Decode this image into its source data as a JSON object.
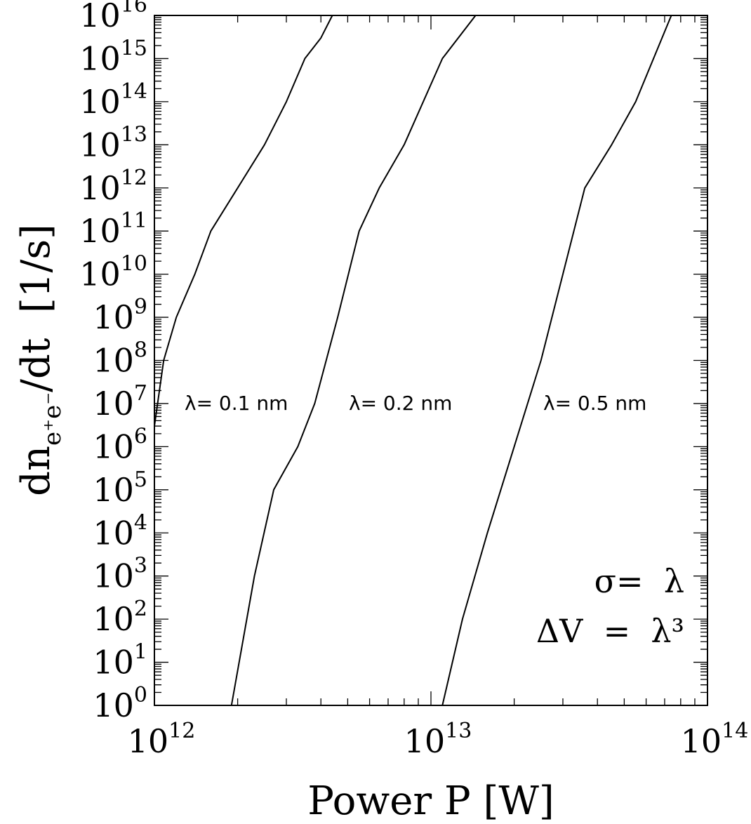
{
  "chart_data": {
    "type": "line",
    "x_scale": "log",
    "y_scale": "log",
    "xlim": [
      1000000000000.0,
      100000000000000.0
    ],
    "ylim": [
      1,
      1e+16
    ],
    "x_ticks": [
      {
        "value": 1000000000000.0,
        "base": "10",
        "exp": "12"
      },
      {
        "value": 10000000000000.0,
        "base": "10",
        "exp": "13"
      },
      {
        "value": 100000000000000.0,
        "base": "10",
        "exp": "14"
      }
    ],
    "y_ticks": [
      {
        "value": 1.0,
        "base": "10",
        "exp": "0"
      },
      {
        "value": 10.0,
        "base": "10",
        "exp": "1"
      },
      {
        "value": 100.0,
        "base": "10",
        "exp": "2"
      },
      {
        "value": 1000.0,
        "base": "10",
        "exp": "3"
      },
      {
        "value": 10000.0,
        "base": "10",
        "exp": "4"
      },
      {
        "value": 100000.0,
        "base": "10",
        "exp": "5"
      },
      {
        "value": 1000000.0,
        "base": "10",
        "exp": "6"
      },
      {
        "value": 10000000.0,
        "base": "10",
        "exp": "7"
      },
      {
        "value": 100000000.0,
        "base": "10",
        "exp": "8"
      },
      {
        "value": 1000000000.0,
        "base": "10",
        "exp": "9"
      },
      {
        "value": 10000000000.0,
        "base": "10",
        "exp": "10"
      },
      {
        "value": 100000000000.0,
        "base": "10",
        "exp": "11"
      },
      {
        "value": 1000000000000.0,
        "base": "10",
        "exp": "12"
      },
      {
        "value": 10000000000000.0,
        "base": "10",
        "exp": "13"
      },
      {
        "value": 100000000000000.0,
        "base": "10",
        "exp": "14"
      },
      {
        "value": 1000000000000000.0,
        "base": "10",
        "exp": "15"
      },
      {
        "value": 1e+16,
        "base": "10",
        "exp": "16"
      }
    ],
    "xlabel": "Power P [W]",
    "ylabel": {
      "prefix": "dn",
      "sub": "e⁺e⁻",
      "suffix": "/dt  [1/s]"
    },
    "annotations": [
      "σ=  λ",
      "ΔV  =  λ³"
    ],
    "grid": false,
    "series": [
      {
        "name": "λ= 0.1 nm",
        "x": [
          1000000000000.0,
          1080000000000.0,
          1200000000000.0,
          1400000000000.0,
          1600000000000.0,
          2000000000000.0,
          2500000000000.0,
          3000000000000.0,
          3500000000000.0,
          4000000000000.0,
          4400000000000.0
        ],
        "y": [
          3000000.0,
          100000000.0,
          1000000000.0,
          10000000000.0,
          100000000000.0,
          1000000000000.0,
          10000000000000.0,
          100000000000000.0,
          1000000000000000.0,
          3000000000000000.0,
          1e+16
        ]
      },
      {
        "name": "λ= 0.2 nm",
        "x": [
          1900000000000.0,
          2300000000000.0,
          2700000000000.0,
          3300000000000.0,
          3800000000000.0,
          4600000000000.0,
          5500000000000.0,
          6500000000000.0,
          8000000000000.0,
          11000000000000.0,
          14500000000000.0
        ],
        "y": [
          1,
          1000.0,
          100000.0,
          1000000.0,
          10000000.0,
          1000000000.0,
          100000000000.0,
          1000000000000.0,
          10000000000000.0,
          1000000000000000.0,
          1e+16
        ]
      },
      {
        "name": "λ= 0.5 nm",
        "x": [
          11000000000000.0,
          13000000000000.0,
          16000000000000.0,
          20000000000000.0,
          25000000000000.0,
          30000000000000.0,
          36000000000000.0,
          45000000000000.0,
          55000000000000.0,
          74000000000000.0
        ],
        "y": [
          1,
          100.0,
          10000.0,
          1000000.0,
          100000000.0,
          10000000000.0,
          1000000000000.0,
          10000000000000.0,
          100000000000000.0,
          1e+16
        ]
      }
    ]
  }
}
